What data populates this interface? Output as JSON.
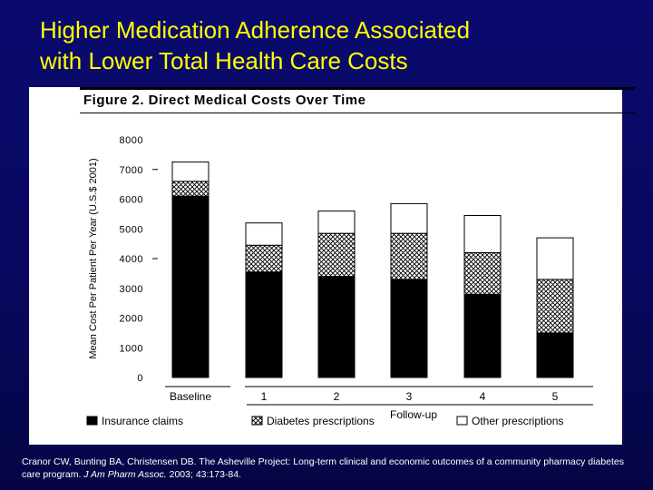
{
  "slide": {
    "title_line1": "Higher Medication Adherence Associated",
    "title_line2": "with Lower Total Health Care Costs",
    "title_color": "#ffff00",
    "background_color": "#0a0a6e"
  },
  "citation": {
    "text_a": "Cranor CW, Bunting BA, Christensen DB. The Asheville Project: Long-term clinical and economic outcomes of a community pharmacy diabetes care program.",
    "journal": "J Am Pharm Assoc.",
    "text_b": "2003; 43:173-84."
  },
  "chart_data": {
    "type": "bar",
    "stacked": true,
    "title": "Figure 2. Direct Medical Costs Over Time",
    "ylabel": "Mean Cost Per Patient Per Year (U.S.$ 2001)",
    "xlabel": "Follow-up",
    "ylim": [
      0,
      8000
    ],
    "yticks": [
      "8000",
      "7000",
      "6000",
      "5000",
      "4000",
      "3000",
      "2000",
      "1000",
      "0"
    ],
    "ytick_values": [
      8000,
      7000,
      6000,
      5000,
      4000,
      3000,
      2000,
      1000,
      0
    ],
    "categories": [
      "Baseline",
      "1",
      "2",
      "3",
      "4",
      "5"
    ],
    "series": [
      {
        "name": "Insurance claims",
        "values": [
          6100,
          3550,
          3400,
          3300,
          2800,
          1500
        ],
        "pattern": "solid"
      },
      {
        "name": "Diabetes prescriptions",
        "values": [
          500,
          900,
          1450,
          1550,
          1400,
          1800
        ],
        "pattern": "crosshatch"
      },
      {
        "name": "Other prescriptions",
        "values": [
          650,
          750,
          750,
          1000,
          1250,
          1400
        ],
        "pattern": "empty"
      }
    ],
    "legend_position": "bottom"
  }
}
